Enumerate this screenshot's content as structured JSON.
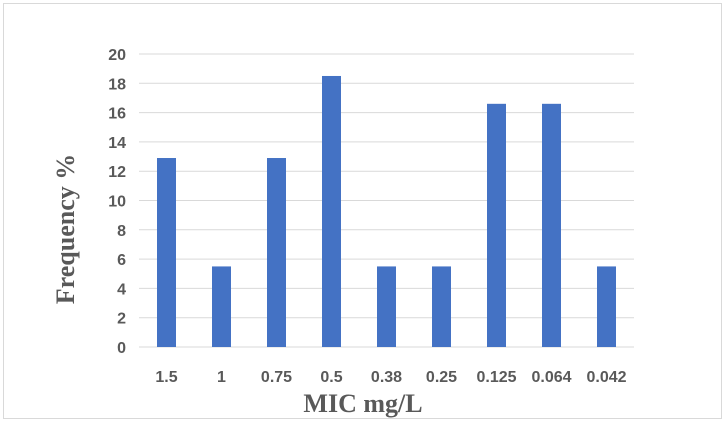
{
  "chart_data": {
    "type": "bar",
    "title": "",
    "xlabel": "MIC mg/L",
    "ylabel": "Frequency %",
    "categories": [
      "1.5",
      "1",
      "0.75",
      "0.5",
      "0.38",
      "0.25",
      "0.125",
      "0.064",
      "0.042"
    ],
    "series": [
      {
        "values": [
          12.9,
          5.5,
          12.9,
          18.5,
          5.5,
          5.5,
          16.6,
          16.6,
          5.5
        ]
      }
    ],
    "ylim": [
      0,
      20
    ],
    "yticks": [
      "0",
      "2",
      "4",
      "6",
      "8",
      "10",
      "12",
      "14",
      "16",
      "18",
      "20"
    ],
    "grid": true,
    "legend": "none",
    "colors": {
      "bar": "#4472c4",
      "grid": "#d9d9d9",
      "text": "#595959"
    }
  }
}
